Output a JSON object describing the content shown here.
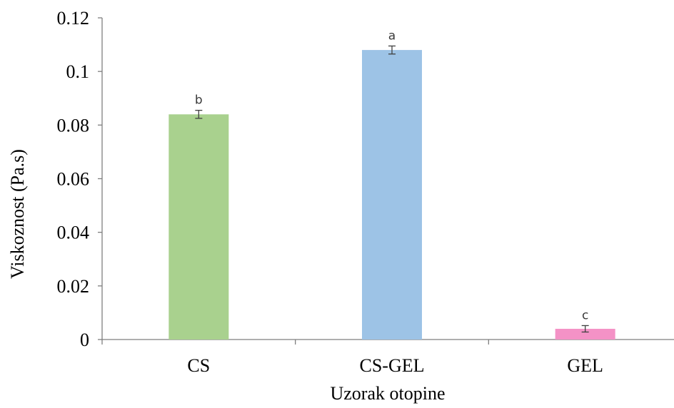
{
  "chart_data": {
    "type": "bar",
    "categories": [
      "CS",
      "CS-GEL",
      "GEL"
    ],
    "values": [
      0.084,
      0.108,
      0.004
    ],
    "errors": [
      0.0015,
      0.0015,
      0.0012
    ],
    "significance_letters": [
      "b",
      "a",
      "c"
    ],
    "colors": [
      "#a9d18e",
      "#9dc3e6",
      "#f492c6"
    ],
    "xlabel": "Uzorak otopine",
    "ylabel": "Viskoznost (Pa.s)",
    "ylim": [
      0,
      0.12
    ],
    "yticks": [
      "0",
      "0.02",
      "0.04",
      "0.06",
      "0.08",
      "0.1",
      "0.12"
    ],
    "grid": false,
    "legend": "none"
  }
}
